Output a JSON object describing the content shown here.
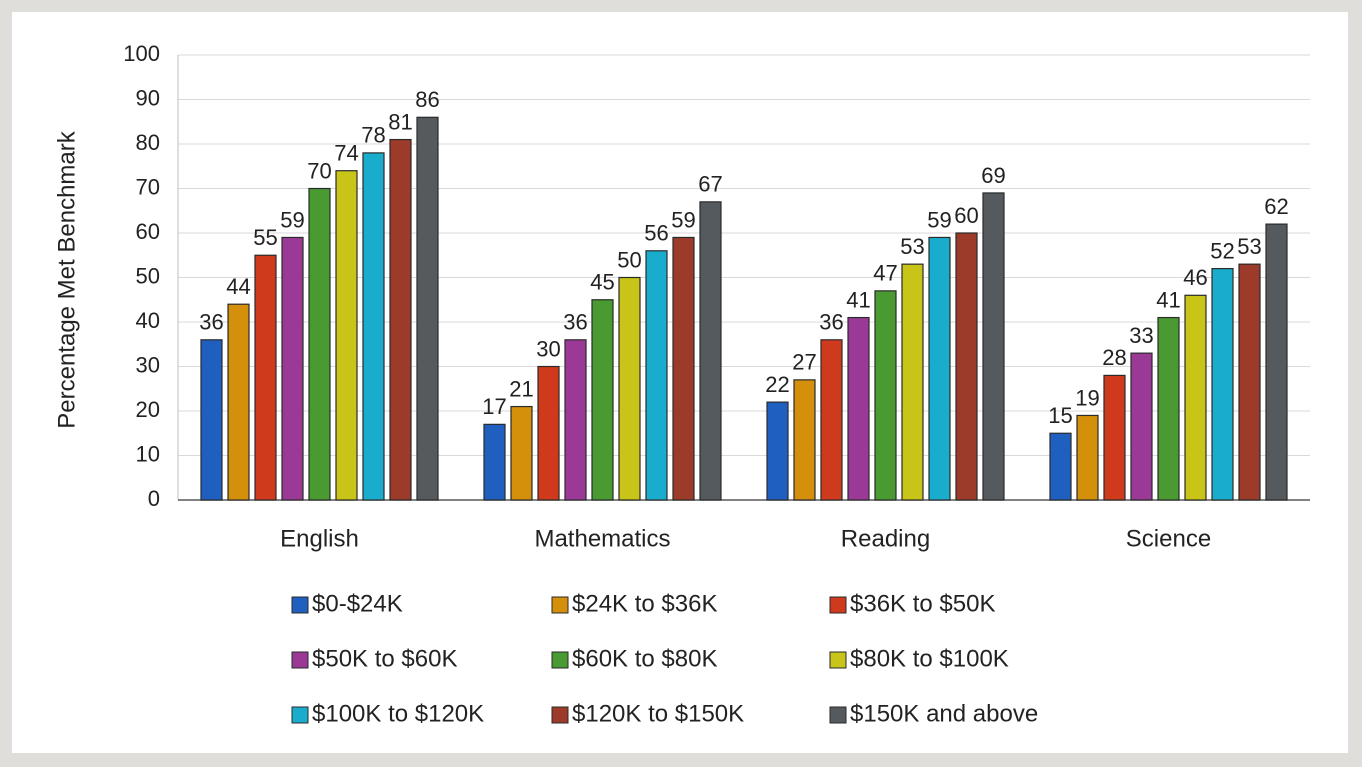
{
  "chart_data": {
    "type": "bar",
    "y_label": "Percentage Met Benchmark",
    "categories": [
      "English",
      "Mathematics",
      "Reading",
      "Science"
    ],
    "series": [
      {
        "name": "$0-$24K",
        "color": "#1f5fbf",
        "values": [
          36,
          17,
          22,
          15
        ]
      },
      {
        "name": "$24K to $36K",
        "color": "#d4900a",
        "values": [
          44,
          21,
          27,
          19
        ]
      },
      {
        "name": "$36K to $50K",
        "color": "#d03a1c",
        "values": [
          55,
          30,
          36,
          28
        ]
      },
      {
        "name": "$50K to $60K",
        "color": "#9b3a96",
        "values": [
          59,
          36,
          41,
          33
        ]
      },
      {
        "name": "$60K to $80K",
        "color": "#4a9a32",
        "values": [
          70,
          45,
          47,
          41
        ]
      },
      {
        "name": "$80K to $100K",
        "color": "#c8c418",
        "values": [
          74,
          50,
          53,
          46
        ]
      },
      {
        "name": "$100K to $120K",
        "color": "#1aaccc",
        "values": [
          78,
          56,
          59,
          52
        ]
      },
      {
        "name": "$120K to $150K",
        "color": "#9c3b2a",
        "values": [
          81,
          59,
          60,
          53
        ]
      },
      {
        "name": "$150K and above",
        "color": "#555a5e",
        "values": [
          86,
          67,
          69,
          62
        ]
      }
    ],
    "ylim": [
      0,
      100
    ],
    "yticks": [
      0,
      10,
      20,
      30,
      40,
      50,
      60,
      70,
      80,
      90,
      100
    ],
    "grid": true,
    "legend": "bottom"
  }
}
